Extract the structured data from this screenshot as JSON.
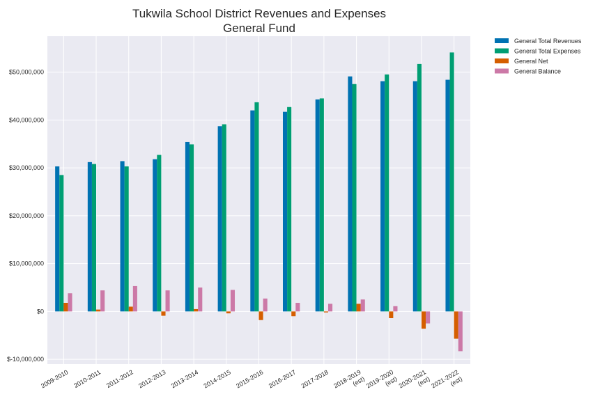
{
  "chart_data": {
    "type": "bar",
    "title": "Tukwila School District Revenues and Expenses",
    "subtitle": "General Fund",
    "categories": [
      [
        "2009-2010"
      ],
      [
        "2010-2011"
      ],
      [
        "2011-2012"
      ],
      [
        "2012-2013"
      ],
      [
        "2013-2014"
      ],
      [
        "2014-2015"
      ],
      [
        "2015-2016"
      ],
      [
        "2016-2017"
      ],
      [
        "2017-2018"
      ],
      [
        "2018-2019",
        "(est)"
      ],
      [
        "2019-2020",
        "(est)"
      ],
      [
        "2020-2021",
        "(est)"
      ],
      [
        "2021-2022",
        "(est)"
      ]
    ],
    "series": [
      {
        "name": "General Total Revenues",
        "color": "#0072b2",
        "values": [
          30300000,
          31200000,
          31400000,
          31800000,
          35400000,
          38700000,
          42000000,
          41700000,
          44300000,
          49100000,
          48100000,
          48100000,
          48400000
        ]
      },
      {
        "name": "General Total Expenses",
        "color": "#009e73",
        "values": [
          28500000,
          30800000,
          30300000,
          32700000,
          34900000,
          39100000,
          43700000,
          42700000,
          44500000,
          47500000,
          49500000,
          51700000,
          54100000
        ]
      },
      {
        "name": "General Net",
        "color": "#d55e00",
        "values": [
          1800000,
          400000,
          1000000,
          -900000,
          500000,
          -400000,
          -1800000,
          -1000000,
          -200000,
          1600000,
          -1400000,
          -3600000,
          -5700000
        ]
      },
      {
        "name": "General Balance",
        "color": "#cc79a7",
        "values": [
          3800000,
          4400000,
          5300000,
          4400000,
          5000000,
          4500000,
          2700000,
          1800000,
          1600000,
          2500000,
          1100000,
          -2500000,
          -8300000
        ]
      }
    ],
    "y_ticks": [
      {
        "value": -10000000,
        "label": "$-10,000,000"
      },
      {
        "value": 0,
        "label": "$0"
      },
      {
        "value": 10000000,
        "label": "$10,000,000"
      },
      {
        "value": 20000000,
        "label": "$20,000,000"
      },
      {
        "value": 30000000,
        "label": "$30,000,000"
      },
      {
        "value": 40000000,
        "label": "$40,000,000"
      },
      {
        "value": 50000000,
        "label": "$50,000,000"
      }
    ],
    "ylim": [
      -11000000,
      57500000
    ],
    "grid": true,
    "legend_position": "outside-top-right",
    "plot_background": "#eaeaf2",
    "grid_color": "#ffffff"
  }
}
